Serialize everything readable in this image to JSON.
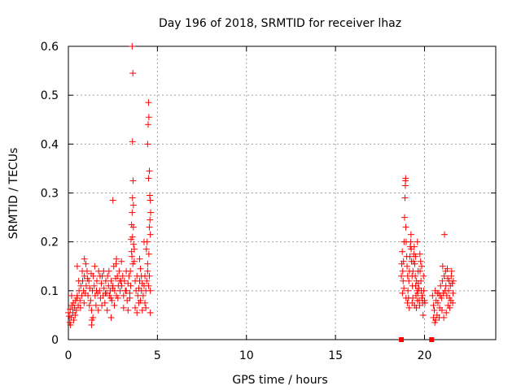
{
  "chart_data": {
    "type": "scatter",
    "title": "Day 196 of 2018, SRMTID for receiver lhaz",
    "xlabel": "GPS time / hours",
    "ylabel": "SRMTID / TECUs",
    "xlim": [
      0,
      24
    ],
    "ylim": [
      0,
      0.6
    ],
    "xticks": [
      0,
      5,
      10,
      15,
      20
    ],
    "yticks": [
      0,
      0.1,
      0.2,
      0.3,
      0.4,
      0.5,
      0.6
    ],
    "ytick_labels": [
      "0",
      "0.1",
      "0.2",
      "0.3",
      "0.4",
      "0.5",
      "0.6"
    ],
    "grid": true,
    "marker": "+",
    "series": [
      {
        "name": "lhaz",
        "color": "#ff0000",
        "points": [
          [
            0.0,
            0.055
          ],
          [
            0.05,
            0.048
          ],
          [
            0.1,
            0.062
          ],
          [
            0.15,
            0.045
          ],
          [
            0.2,
            0.07
          ],
          [
            0.25,
            0.055
          ],
          [
            0.3,
            0.04
          ],
          [
            0.35,
            0.065
          ],
          [
            0.4,
            0.08
          ],
          [
            0.45,
            0.06
          ],
          [
            0.5,
            0.09
          ],
          [
            0.55,
            0.07
          ],
          [
            0.6,
            0.1
          ],
          [
            0.65,
            0.08
          ],
          [
            0.7,
            0.11
          ],
          [
            0.75,
            0.09
          ],
          [
            0.8,
            0.12
          ],
          [
            0.85,
            0.1
          ],
          [
            0.9,
            0.13
          ],
          [
            0.95,
            0.095
          ],
          [
            1.0,
            0.11
          ],
          [
            1.05,
            0.14
          ],
          [
            1.1,
            0.09
          ],
          [
            1.15,
            0.12
          ],
          [
            1.2,
            0.105
          ],
          [
            1.25,
            0.08
          ],
          [
            1.3,
            0.06
          ],
          [
            1.35,
            0.1
          ],
          [
            1.4,
            0.13
          ],
          [
            1.45,
            0.11
          ],
          [
            1.5,
            0.09
          ],
          [
            1.55,
            0.07
          ],
          [
            1.6,
            0.12
          ],
          [
            1.65,
            0.095
          ],
          [
            1.7,
            0.14
          ],
          [
            1.75,
            0.1
          ],
          [
            1.8,
            0.085
          ],
          [
            1.85,
            0.115
          ],
          [
            1.9,
            0.13
          ],
          [
            1.95,
            0.09
          ],
          [
            2.0,
            0.105
          ],
          [
            2.05,
            0.075
          ],
          [
            2.1,
            0.12
          ],
          [
            2.15,
            0.095
          ],
          [
            2.2,
            0.13
          ],
          [
            2.25,
            0.11
          ],
          [
            2.3,
            0.09
          ],
          [
            2.35,
            0.1
          ],
          [
            2.4,
            0.12
          ],
          [
            2.45,
            0.08
          ],
          [
            2.5,
            0.11
          ],
          [
            2.55,
            0.15
          ],
          [
            2.6,
            0.1
          ],
          [
            2.65,
            0.125
          ],
          [
            2.7,
            0.09
          ],
          [
            2.75,
            0.13
          ],
          [
            2.8,
            0.11
          ],
          [
            2.85,
            0.14
          ],
          [
            2.9,
            0.1
          ],
          [
            2.95,
            0.12
          ],
          [
            0.08,
            0.035
          ],
          [
            0.18,
            0.09
          ],
          [
            0.28,
            0.075
          ],
          [
            0.38,
            0.05
          ],
          [
            0.48,
            0.085
          ],
          [
            0.58,
            0.12
          ],
          [
            0.68,
            0.065
          ],
          [
            0.78,
            0.14
          ],
          [
            0.88,
            0.075
          ],
          [
            0.98,
            0.155
          ],
          [
            1.08,
            0.125
          ],
          [
            1.18,
            0.07
          ],
          [
            1.28,
            0.135
          ],
          [
            1.38,
            0.045
          ],
          [
            1.48,
            0.15
          ],
          [
            1.58,
            0.1
          ],
          [
            1.68,
            0.06
          ],
          [
            1.78,
            0.13
          ],
          [
            1.88,
            0.07
          ],
          [
            1.98,
            0.14
          ],
          [
            2.08,
            0.095
          ],
          [
            2.18,
            0.06
          ],
          [
            2.28,
            0.14
          ],
          [
            2.38,
            0.085
          ],
          [
            2.48,
            0.105
          ],
          [
            2.58,
            0.07
          ],
          [
            2.68,
            0.155
          ],
          [
            2.78,
            0.085
          ],
          [
            2.88,
            0.12
          ],
          [
            2.98,
            0.16
          ],
          [
            1.3,
            0.03
          ],
          [
            1.32,
            0.04
          ],
          [
            2.4,
            0.045
          ],
          [
            0.12,
            0.03
          ],
          [
            0.5,
            0.15
          ],
          [
            0.9,
            0.165
          ],
          [
            2.5,
            0.285
          ],
          [
            2.7,
            0.165
          ],
          [
            3.0,
            0.11
          ],
          [
            3.05,
            0.13
          ],
          [
            3.1,
            0.09
          ],
          [
            3.15,
            0.12
          ],
          [
            3.2,
            0.1
          ],
          [
            3.25,
            0.14
          ],
          [
            3.3,
            0.08
          ],
          [
            3.35,
            0.115
          ],
          [
            3.4,
            0.13
          ],
          [
            3.45,
            0.095
          ],
          [
            3.5,
            0.11
          ],
          [
            3.55,
            0.18
          ],
          [
            3.6,
            0.21
          ],
          [
            3.65,
            0.23
          ],
          [
            3.7,
            0.16
          ],
          [
            3.75,
            0.12
          ],
          [
            3.8,
            0.1
          ],
          [
            3.85,
            0.13
          ],
          [
            3.9,
            0.09
          ],
          [
            3.95,
            0.105
          ],
          [
            4.0,
            0.12
          ],
          [
            4.05,
            0.08
          ],
          [
            4.1,
            0.1
          ],
          [
            4.15,
            0.06
          ],
          [
            4.2,
            0.09
          ],
          [
            4.25,
            0.11
          ],
          [
            4.3,
            0.13
          ],
          [
            4.35,
            0.1
          ],
          [
            4.4,
            0.12
          ],
          [
            4.45,
            0.14
          ],
          [
            4.5,
            0.11
          ],
          [
            4.55,
            0.13
          ],
          [
            4.6,
            0.1
          ],
          [
            3.58,
            0.6
          ],
          [
            3.62,
            0.545
          ],
          [
            3.6,
            0.405
          ],
          [
            3.63,
            0.325
          ],
          [
            3.6,
            0.29
          ],
          [
            3.65,
            0.275
          ],
          [
            3.58,
            0.26
          ],
          [
            3.55,
            0.235
          ],
          [
            3.66,
            0.195
          ],
          [
            3.7,
            0.185
          ],
          [
            3.52,
            0.205
          ],
          [
            3.57,
            0.17
          ],
          [
            3.62,
            0.155
          ],
          [
            3.48,
            0.14
          ],
          [
            4.38,
            0.185
          ],
          [
            4.42,
            0.2
          ],
          [
            4.45,
            0.4
          ],
          [
            4.5,
            0.485
          ],
          [
            4.52,
            0.455
          ],
          [
            4.48,
            0.44
          ],
          [
            4.5,
            0.33
          ],
          [
            4.55,
            0.345
          ],
          [
            4.57,
            0.295
          ],
          [
            4.6,
            0.285
          ],
          [
            4.62,
            0.26
          ],
          [
            4.58,
            0.245
          ],
          [
            4.55,
            0.23
          ],
          [
            4.6,
            0.215
          ],
          [
            4.52,
            0.175
          ],
          [
            4.45,
            0.155
          ],
          [
            4.35,
            0.065
          ],
          [
            4.6,
            0.055
          ],
          [
            4.3,
            0.075
          ],
          [
            4.25,
            0.2
          ],
          [
            3.95,
            0.075
          ],
          [
            4.05,
            0.145
          ],
          [
            4.15,
            0.115
          ],
          [
            3.85,
            0.055
          ],
          [
            3.75,
            0.065
          ],
          [
            3.45,
            0.085
          ],
          [
            3.35,
            0.06
          ],
          [
            3.25,
            0.1
          ],
          [
            3.1,
            0.065
          ],
          [
            4.0,
            0.165
          ],
          [
            4.1,
            0.13
          ],
          [
            18.7,
            0.13
          ],
          [
            18.72,
            0.155
          ],
          [
            18.75,
            0.18
          ],
          [
            18.78,
            0.14
          ],
          [
            18.8,
            0.12
          ],
          [
            18.82,
            0.16
          ],
          [
            18.85,
            0.2
          ],
          [
            18.88,
            0.25
          ],
          [
            18.9,
            0.29
          ],
          [
            18.92,
            0.315
          ],
          [
            18.93,
            0.325
          ],
          [
            18.94,
            0.33
          ],
          [
            18.95,
            0.23
          ],
          [
            18.97,
            0.2
          ],
          [
            19.0,
            0.17
          ],
          [
            19.02,
            0.15
          ],
          [
            19.05,
            0.13
          ],
          [
            19.07,
            0.1
          ],
          [
            19.1,
            0.085
          ],
          [
            19.12,
            0.12
          ],
          [
            19.15,
            0.14
          ],
          [
            19.18,
            0.17
          ],
          [
            19.2,
            0.19
          ],
          [
            19.22,
            0.2
          ],
          [
            19.25,
            0.185
          ],
          [
            19.27,
            0.16
          ],
          [
            19.3,
            0.13
          ],
          [
            19.32,
            0.11
          ],
          [
            19.35,
            0.14
          ],
          [
            19.38,
            0.16
          ],
          [
            19.4,
            0.175
          ],
          [
            19.42,
            0.19
          ],
          [
            19.45,
            0.155
          ],
          [
            19.48,
            0.13
          ],
          [
            19.5,
            0.11
          ],
          [
            19.52,
            0.09
          ],
          [
            19.55,
            0.12
          ],
          [
            19.58,
            0.1
          ],
          [
            19.6,
            0.08
          ],
          [
            19.62,
            0.095
          ],
          [
            19.65,
            0.115
          ],
          [
            19.68,
            0.105
          ],
          [
            19.7,
            0.08
          ],
          [
            19.72,
            0.07
          ],
          [
            19.75,
            0.14
          ],
          [
            19.78,
            0.16
          ],
          [
            19.8,
            0.12
          ],
          [
            19.82,
            0.1
          ],
          [
            19.85,
            0.085
          ],
          [
            19.88,
            0.09
          ],
          [
            19.9,
            0.075
          ],
          [
            18.76,
            0.095
          ],
          [
            18.84,
            0.105
          ],
          [
            18.96,
            0.085
          ],
          [
            19.04,
            0.075
          ],
          [
            19.14,
            0.065
          ],
          [
            19.24,
            0.215
          ],
          [
            19.34,
            0.085
          ],
          [
            19.44,
            0.07
          ],
          [
            19.54,
            0.065
          ],
          [
            19.64,
            0.14
          ],
          [
            19.74,
            0.175
          ],
          [
            19.84,
            0.15
          ],
          [
            19.94,
            0.13
          ],
          [
            19.96,
            0.1
          ],
          [
            20.0,
            0.08
          ],
          [
            20.02,
            0.075
          ],
          [
            19.92,
            0.05
          ],
          [
            19.6,
            0.2
          ],
          [
            19.5,
            0.17
          ],
          [
            19.3,
            0.075
          ],
          [
            20.45,
            0.09
          ],
          [
            20.5,
            0.07
          ],
          [
            20.55,
            0.06
          ],
          [
            20.6,
            0.1
          ],
          [
            20.65,
            0.08
          ],
          [
            20.7,
            0.05
          ],
          [
            20.75,
            0.075
          ],
          [
            20.8,
            0.095
          ],
          [
            20.85,
            0.065
          ],
          [
            20.9,
            0.11
          ],
          [
            20.95,
            0.085
          ],
          [
            21.0,
            0.12
          ],
          [
            21.05,
            0.095
          ],
          [
            21.1,
            0.13
          ],
          [
            21.15,
            0.1
          ],
          [
            21.2,
            0.11
          ],
          [
            21.25,
            0.09
          ],
          [
            21.3,
            0.125
          ],
          [
            21.35,
            0.1
          ],
          [
            21.4,
            0.085
          ],
          [
            21.45,
            0.11
          ],
          [
            21.5,
            0.13
          ],
          [
            21.55,
            0.115
          ],
          [
            21.6,
            0.095
          ],
          [
            20.5,
            0.045
          ],
          [
            20.58,
            0.035
          ],
          [
            20.62,
            0.04
          ],
          [
            20.72,
            0.095
          ],
          [
            20.82,
            0.045
          ],
          [
            20.88,
            0.09
          ],
          [
            20.98,
            0.06
          ],
          [
            21.02,
            0.15
          ],
          [
            21.08,
            0.045
          ],
          [
            21.12,
            0.215
          ],
          [
            21.18,
            0.14
          ],
          [
            21.22,
            0.055
          ],
          [
            21.28,
            0.145
          ],
          [
            21.32,
            0.07
          ],
          [
            21.38,
            0.12
          ],
          [
            21.42,
            0.065
          ],
          [
            21.48,
            0.08
          ],
          [
            21.52,
            0.14
          ],
          [
            21.58,
            0.075
          ],
          [
            21.62,
            0.12
          ]
        ]
      }
    ],
    "markers": {
      "name": "data-gap-markers",
      "color": "#ff0000",
      "points": [
        [
          18.7,
          0.0
        ],
        [
          20.4,
          0.0
        ]
      ]
    }
  }
}
